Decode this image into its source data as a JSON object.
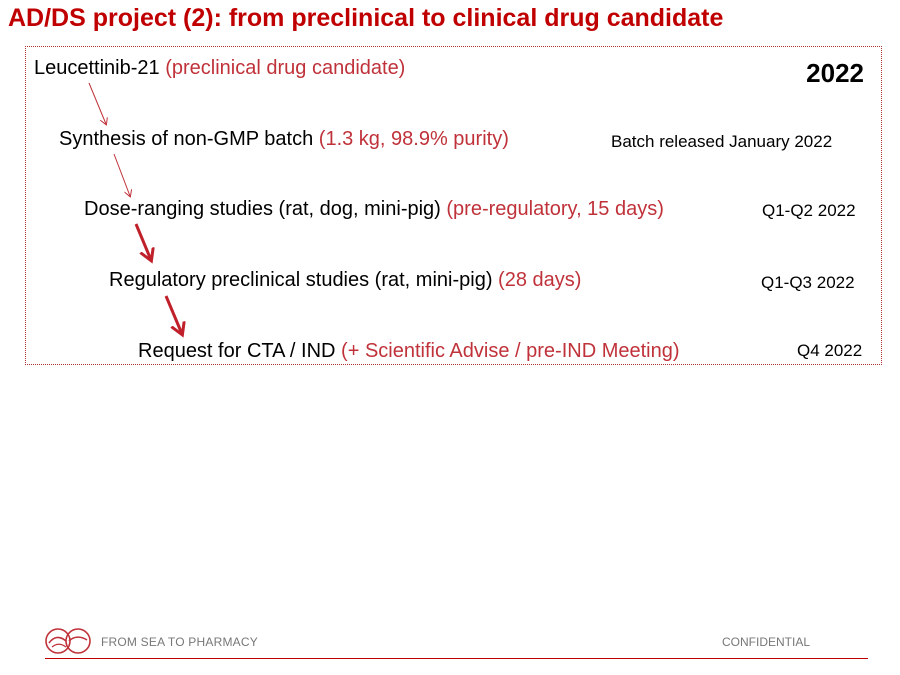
{
  "title": "AD/DS project (2): from preclinical to clinical drug candidate",
  "year": "2022",
  "steps": [
    {
      "main": "Leucettinib-21",
      "detail": "(preclinical drug candidate)",
      "date": ""
    },
    {
      "main": "Synthesis of non-GMP batch",
      "detail": "(1.3 kg, 98.9% purity)",
      "date": "Batch released January 2022"
    },
    {
      "main": "Dose-ranging studies (rat, dog, mini-pig)",
      "detail": "(pre-regulatory, 15 days)",
      "date": "Q1-Q2 2022"
    },
    {
      "main": "Regulatory preclinical studies (rat, mini-pig)",
      "detail": "(28 days)",
      "date": "Q1-Q3 2022"
    },
    {
      "main": "Request for CTA / IND",
      "detail": "(+ Scientific Advise / pre-IND Meeting)",
      "date": "Q4 2022"
    }
  ],
  "footer": {
    "left": "FROM SEA TO PHARMACY",
    "right": "CONFIDENTIAL"
  },
  "colors": {
    "accent": "#c00000",
    "detail": "#c0323a"
  },
  "icons": {
    "logo": "sea-to-pharmacy-logo-icon"
  }
}
